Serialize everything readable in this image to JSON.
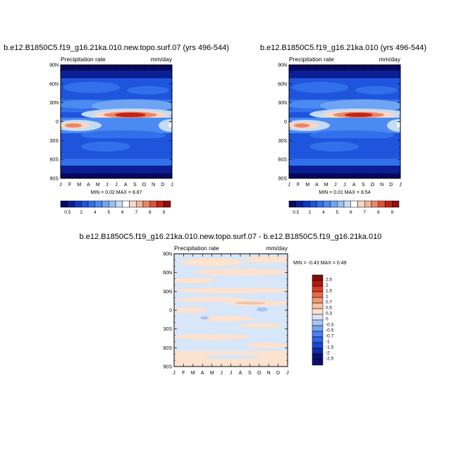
{
  "chart_data": [
    {
      "type": "heatmap",
      "title": "b.e12.B1850C5.f19_g16.21ka.010.new.topo.surf.07 (yrs 496-544)",
      "left_label": "Precipitation rate",
      "right_label": "mm/day",
      "x_ticks": [
        "J",
        "F",
        "M",
        "A",
        "M",
        "J",
        "J",
        "A",
        "S",
        "O",
        "N",
        "D",
        "J"
      ],
      "y_ticks": [
        "90N",
        "60N",
        "30N",
        "0",
        "30S",
        "60S",
        "90S"
      ],
      "min_max_text": "MIN =   0.02 MAX =   8.87",
      "levels": [
        "0.5",
        "1",
        "2",
        "3",
        "4",
        "5",
        "5.5",
        "6",
        "6.5",
        "7",
        "7.5",
        "8",
        "8.5",
        "9"
      ],
      "legend_labels": [
        "0.5",
        "2",
        "4",
        "5",
        "6",
        "7",
        "8",
        "9"
      ],
      "bands": [
        {
          "lat_range": [
            60,
            90
          ],
          "value": 1.2
        },
        {
          "lat_range": [
            35,
            60
          ],
          "value": 3.2
        },
        {
          "lat_range": [
            15,
            35
          ],
          "value": 2.4
        },
        {
          "lat_range": [
            2,
            15
          ],
          "value": 6.5,
          "peak_month": "Aug",
          "peak_value": 8.9
        },
        {
          "lat_range": [
            -15,
            2
          ],
          "value": 5.5,
          "peak_month": "Mar",
          "peak_value": 7.5
        },
        {
          "lat_range": [
            -40,
            -15
          ],
          "value": 2.3
        },
        {
          "lat_range": [
            -60,
            -40
          ],
          "value": 3.5
        },
        {
          "lat_range": [
            -90,
            -60
          ],
          "value": 0.9
        }
      ]
    },
    {
      "type": "heatmap",
      "title": "b.e12.B1850C5.f19_g16.21ka.010 (yrs 496-544)",
      "left_label": "Precipitation rate",
      "right_label": "mm/day",
      "x_ticks": [
        "J",
        "F",
        "M",
        "A",
        "M",
        "J",
        "J",
        "A",
        "S",
        "O",
        "N",
        "D",
        "J"
      ],
      "y_ticks": [
        "90N",
        "60N",
        "30N",
        "0",
        "30S",
        "60S",
        "90S"
      ],
      "min_max_text": "MIN =   0.01 MAX =   8.54",
      "levels": [
        "0.5",
        "1",
        "2",
        "3",
        "4",
        "5",
        "5.5",
        "6",
        "6.5",
        "7",
        "7.5",
        "8",
        "8.5",
        "9"
      ],
      "legend_labels": [
        "0.5",
        "2",
        "4",
        "5",
        "6",
        "7",
        "8",
        "9"
      ],
      "bands": [
        {
          "lat_range": [
            60,
            90
          ],
          "value": 1.2
        },
        {
          "lat_range": [
            35,
            60
          ],
          "value": 3.2
        },
        {
          "lat_range": [
            15,
            35
          ],
          "value": 2.4
        },
        {
          "lat_range": [
            2,
            15
          ],
          "value": 6.4,
          "peak_month": "Aug",
          "peak_value": 8.5
        },
        {
          "lat_range": [
            -15,
            2
          ],
          "value": 5.5,
          "peak_month": "Mar",
          "peak_value": 7.4
        },
        {
          "lat_range": [
            -40,
            -15
          ],
          "value": 2.3
        },
        {
          "lat_range": [
            -60,
            -40
          ],
          "value": 3.5
        },
        {
          "lat_range": [
            -90,
            -60
          ],
          "value": 0.9
        }
      ]
    },
    {
      "type": "heatmap",
      "title": "b.e12.B1850C5.f19_g16.21ka.010.new.topo.surf.07 - b.e12.B1850C5.f19_g16.21ka.010",
      "left_label": "Precipitation rate",
      "right_label": "mm/day",
      "x_ticks": [
        "J",
        "F",
        "M",
        "A",
        "M",
        "J",
        "J",
        "A",
        "S",
        "O",
        "N",
        "D",
        "J"
      ],
      "y_ticks": [
        "90N",
        "60N",
        "30N",
        "0",
        "30S",
        "60S",
        "90S"
      ],
      "min_max_text": "MIN =  -0.43 MAX =   0.49",
      "legend_labels": [
        "2.5",
        "2",
        "1.5",
        "1",
        "0.7",
        "0.5",
        "0.3",
        "0",
        "-0.3",
        "-0.5",
        "-0.7",
        "-1",
        "-1.5",
        "-2",
        "-2.5"
      ],
      "description_values": {
        "min": -0.43,
        "max": 0.49
      }
    }
  ],
  "palettes": {
    "precip": [
      "#08085e",
      "#0b1f94",
      "#1236c0",
      "#1f55dc",
      "#3170ea",
      "#4a8af1",
      "#6fa4f4",
      "#98c0f4",
      "#c4dbf6",
      "#ffffff",
      "#f6d6c6",
      "#f3b39a",
      "#ec8567",
      "#de5138",
      "#c42117",
      "#8e0f0f"
    ],
    "diff": [
      "#0a0f72",
      "#0f2aa6",
      "#1b45d3",
      "#2f62e6",
      "#4b80ee",
      "#7aa4f0",
      "#a8c4f1",
      "#d7e6f8",
      "#fde2cf",
      "#f6c1a4",
      "#f19877",
      "#e86a4b",
      "#d63d25",
      "#b3170f",
      "#7e0d0d"
    ]
  }
}
